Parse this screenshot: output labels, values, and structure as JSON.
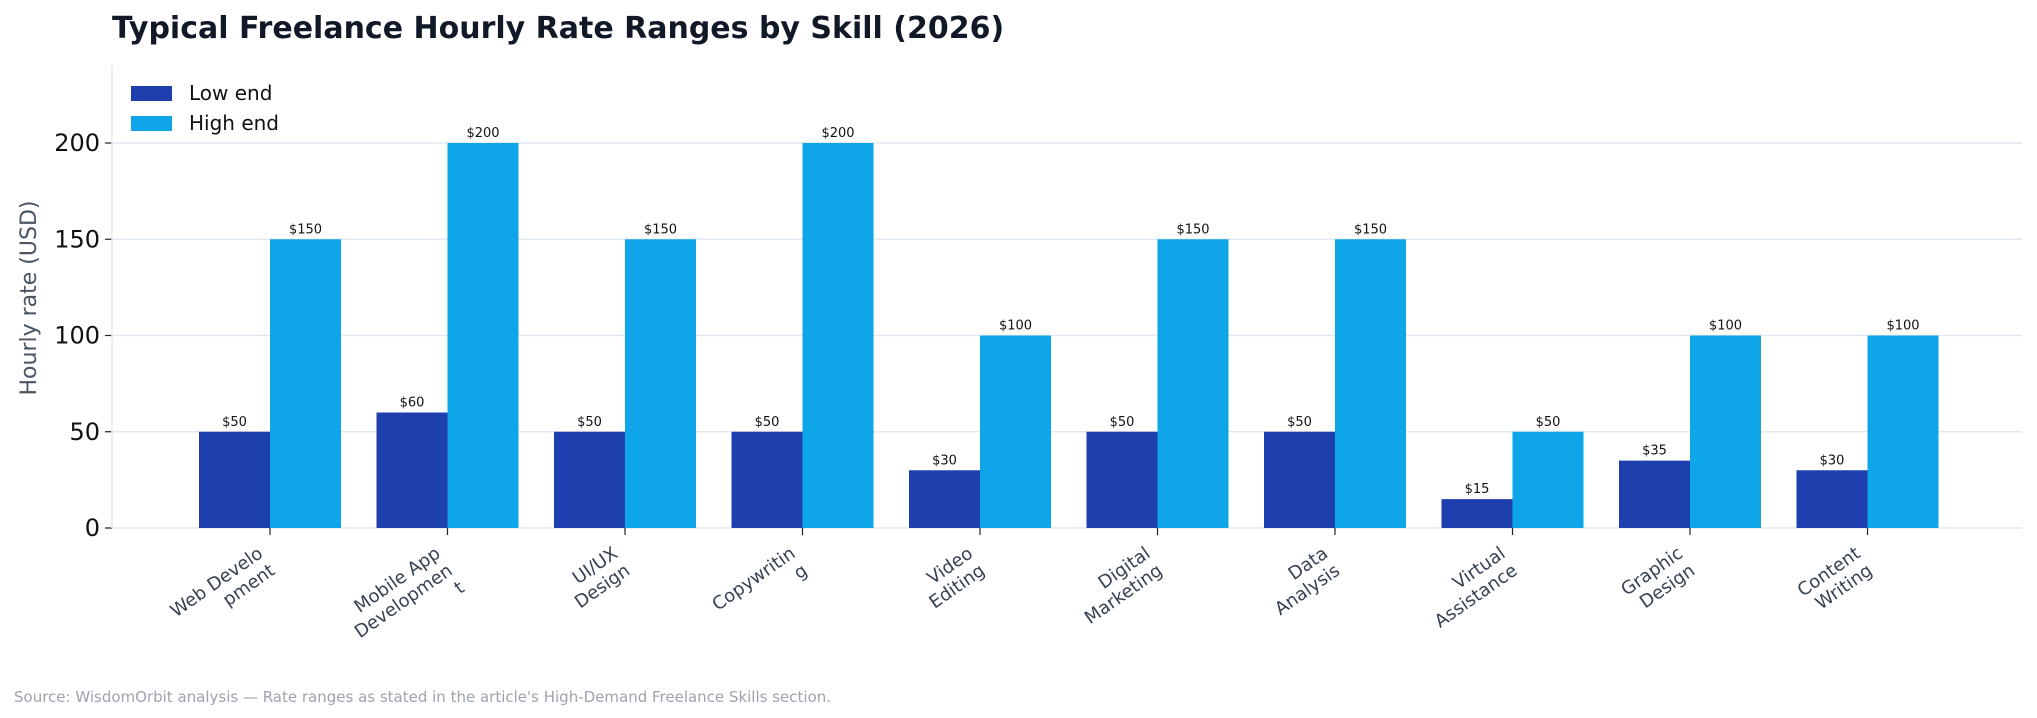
{
  "chart_data": {
    "type": "bar",
    "title": "Typical Freelance Hourly Rate Ranges by Skill (2026)",
    "ylabel": "Hourly rate (USD)",
    "xlabel": "",
    "ylim": [
      0,
      240
    ],
    "yticks": [
      0,
      50,
      100,
      150,
      200
    ],
    "grid": "horizontal",
    "legend_position": "top-left",
    "categories": [
      [
        "Web Develo",
        "pment"
      ],
      [
        "Mobile App",
        "Developmen",
        "t"
      ],
      [
        "UI/UX",
        "Design"
      ],
      [
        "Copywritin",
        "g"
      ],
      [
        "Video",
        "Editing"
      ],
      [
        "Digital",
        "Marketing"
      ],
      [
        "Data",
        "Analysis"
      ],
      [
        "Virtual",
        "Assistance"
      ],
      [
        "Graphic",
        "Design"
      ],
      [
        "Content",
        "Writing"
      ]
    ],
    "series": [
      {
        "name": "Low end",
        "color": "#1e40af",
        "values": [
          50,
          60,
          50,
          50,
          30,
          50,
          50,
          15,
          35,
          30
        ],
        "labels": [
          "$50",
          "$60",
          "$50",
          "$50",
          "$30",
          "$50",
          "$50",
          "$15",
          "$35",
          "$30"
        ]
      },
      {
        "name": "High end",
        "color": "#0ea5e9",
        "values": [
          150,
          200,
          150,
          200,
          100,
          150,
          150,
          50,
          100,
          100
        ],
        "labels": [
          "$150",
          "$200",
          "$150",
          "$200",
          "$100",
          "$150",
          "$150",
          "$50",
          "$100",
          "$100"
        ]
      }
    ],
    "source": "Source: WisdomOrbit analysis — Rate ranges as stated in the article's High-Demand Freelance Skills section."
  }
}
